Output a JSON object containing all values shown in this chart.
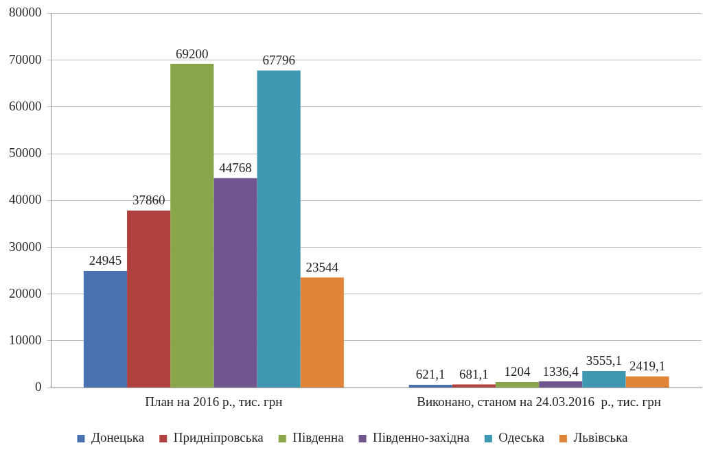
{
  "chart_data": {
    "type": "bar",
    "categories": [
      "План на 2016 р., тис. грн",
      "Виконано, станом на 24.03.2016  р., тис. грн"
    ],
    "series": [
      {
        "name": "Донецька",
        "color": "#4a72b0",
        "values": [
          24945,
          621.1
        ],
        "value_labels": [
          "24945",
          "621,1"
        ]
      },
      {
        "name": "Придніпровська",
        "color": "#b0413e",
        "values": [
          37860,
          681.1
        ],
        "value_labels": [
          "37860",
          "681,1"
        ]
      },
      {
        "name": "Південна",
        "color": "#8aa64a",
        "values": [
          69200,
          1204
        ],
        "value_labels": [
          "69200",
          "1204"
        ]
      },
      {
        "name": "Південно-західна",
        "color": "#70578f",
        "values": [
          44768,
          1336.4
        ],
        "value_labels": [
          "44768",
          "1336,4"
        ]
      },
      {
        "name": "Одеська",
        "color": "#3f98b2",
        "values": [
          67796,
          3555.1
        ],
        "value_labels": [
          "67796",
          "3555,1"
        ]
      },
      {
        "name": "Львівська",
        "color": "#df8539",
        "values": [
          23544,
          2419.1
        ],
        "value_labels": [
          "23544",
          "2419,1"
        ]
      }
    ],
    "ylim": [
      0,
      80000
    ],
    "yticks": [
      0,
      10000,
      20000,
      30000,
      40000,
      50000,
      60000,
      70000,
      80000
    ],
    "grid": "y",
    "legend": "bottom"
  }
}
